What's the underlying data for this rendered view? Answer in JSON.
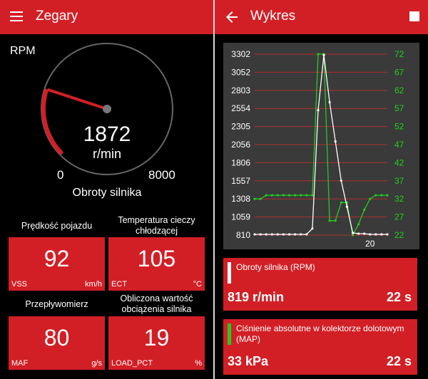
{
  "left_screen": {
    "title": "Zegary",
    "gauge": {
      "title": "RPM",
      "value": "1872",
      "unit": "r/min",
      "min": "0",
      "max": "8000",
      "caption": "Obroty silnika",
      "level_fraction": 0.234
    },
    "tiles": [
      {
        "caption": "Prędkość pojazdu",
        "value": "92",
        "code": "VSS",
        "unit": "km/h"
      },
      {
        "caption": "Temperatura cieczy chłodzącej",
        "value": "105",
        "code": "ECT",
        "unit": "°C"
      },
      {
        "caption": "Przepływomierz",
        "value": "80",
        "code": "MAF",
        "unit": "g/s"
      },
      {
        "caption": "Obliczona wartość obciążenia silnika",
        "value": "19",
        "code": "LOAD_PCT",
        "unit": "%"
      }
    ]
  },
  "right_screen": {
    "title": "Wykres",
    "cards": [
      {
        "label": "Obroty silnika (RPM)",
        "value": "819 r/min",
        "time": "22 s",
        "stripe_color": "#ffffff"
      },
      {
        "label": "Ciśnienie absolutne w kolektorze dolotowym (MAP)",
        "value": "33 kPa",
        "time": "22 s",
        "stripe_color": "#22cc22"
      }
    ]
  },
  "chart_data": {
    "type": "line",
    "x_tick_labels": [
      "20"
    ],
    "xlim": [
      0,
      23
    ],
    "y_left_ticks": [
      "3302",
      "3052",
      "2803",
      "2554",
      "2305",
      "2056",
      "1806",
      "1557",
      "1308",
      "1059",
      "810"
    ],
    "y_right_ticks": [
      "72",
      "67",
      "62",
      "57",
      "52",
      "47",
      "42",
      "37",
      "32",
      "27",
      "22"
    ],
    "y_left_lim": [
      810,
      3302
    ],
    "y_right_lim": [
      22,
      72
    ],
    "grid": true,
    "colors": {
      "left_series": "#ffffff",
      "right_series": "#22cc22",
      "grid": "#b03030",
      "background": "#3a3a3a"
    },
    "series": [
      {
        "axis": "left",
        "x": [
          0,
          1,
          2,
          3,
          4,
          5,
          6,
          7,
          8,
          9,
          10,
          11,
          12,
          13,
          14,
          15,
          16,
          17,
          18,
          19,
          20,
          21,
          22,
          23
        ],
        "values": [
          820,
          820,
          820,
          820,
          820,
          820,
          820,
          820,
          820,
          820,
          900,
          2530,
          3290,
          2640,
          2100,
          1560,
          1200,
          840,
          830,
          830,
          820,
          820,
          820,
          820
        ]
      },
      {
        "axis": "right",
        "x": [
          0,
          1,
          2,
          3,
          4,
          5,
          6,
          7,
          8,
          9,
          10,
          11,
          12,
          13,
          14,
          15,
          16,
          17,
          18,
          19,
          20,
          21,
          22,
          23
        ],
        "values": [
          32,
          32,
          33,
          33,
          33,
          33,
          33,
          33,
          33,
          33,
          33,
          72,
          72,
          26,
          26,
          31,
          31,
          22,
          25,
          29,
          32,
          33,
          33,
          33
        ]
      }
    ]
  }
}
